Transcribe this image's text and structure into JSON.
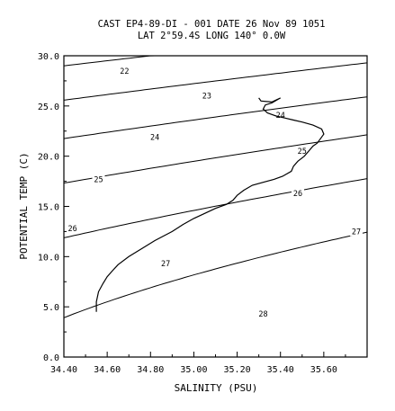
{
  "chart_data": {
    "type": "line",
    "title_line1": "CAST EP4-89-DI - 001  DATE 26 Nov 89 1051",
    "title_line2": "LAT 2°59.4S  LONG 140° 0.0W",
    "xlabel": "SALINITY (PSU)",
    "ylabel": "POTENTIAL TEMP (C)",
    "xlim": [
      34.4,
      35.8
    ],
    "ylim": [
      0,
      30
    ],
    "xticks": [
      34.4,
      34.6,
      34.8,
      35.0,
      35.2,
      35.4,
      35.6
    ],
    "xtick_labels": [
      "34.40",
      "34.60",
      "34.80",
      "35.00",
      "35.20",
      "35.40",
      "35.60"
    ],
    "yticks": [
      0,
      5,
      10,
      15,
      20,
      25,
      30
    ],
    "ytick_labels": [
      "0.0",
      "5.0",
      "10.0",
      "15.0",
      "20.0",
      "25.0",
      "30.0"
    ],
    "grid": false,
    "series": [
      {
        "type": "line",
        "x": [
          34.55,
          34.55,
          34.56,
          34.58,
          34.6,
          34.62,
          34.65,
          34.7,
          34.76,
          34.82,
          34.9,
          34.95,
          35.0,
          35.06,
          35.1,
          35.15,
          35.18,
          35.2,
          35.23,
          35.27,
          35.32,
          35.37,
          35.41,
          35.45,
          35.46,
          35.48,
          35.51,
          35.53,
          35.55,
          35.57,
          35.58,
          35.6,
          35.59,
          35.55,
          35.5,
          35.46,
          35.42,
          35.38,
          35.34,
          35.32,
          35.33,
          35.36,
          35.4,
          35.36,
          35.31,
          35.3
        ],
        "y": [
          4.5,
          5.5,
          6.5,
          7.3,
          8.0,
          8.5,
          9.2,
          10.0,
          10.8,
          11.6,
          12.5,
          13.2,
          13.8,
          14.4,
          14.8,
          15.2,
          15.6,
          16.1,
          16.6,
          17.1,
          17.4,
          17.7,
          18.0,
          18.5,
          19.0,
          19.5,
          20.0,
          20.5,
          21.0,
          21.3,
          21.6,
          22.2,
          22.7,
          23.1,
          23.4,
          23.6,
          23.8,
          24.0,
          24.3,
          24.7,
          25.1,
          25.3,
          25.8,
          25.4,
          25.5,
          25.8
        ]
      }
    ],
    "contours": [
      {
        "label": "22",
        "sigma": 22,
        "label_at": [
          34.68,
          28.5
        ]
      },
      {
        "label": "23",
        "sigma": 23,
        "label_at": [
          35.06,
          26.0
        ]
      },
      {
        "label": "24",
        "sigma": 24,
        "label_at": [
          35.4,
          24.1
        ]
      },
      {
        "label": "24",
        "sigma": 24,
        "label_at": [
          34.82,
          21.9
        ]
      },
      {
        "label": "25",
        "sigma": 25,
        "label_at": [
          35.5,
          20.5
        ]
      },
      {
        "label": "25",
        "sigma": 25,
        "label_at": [
          34.56,
          17.7
        ]
      },
      {
        "label": "26",
        "sigma": 26,
        "label_at": [
          35.48,
          16.3
        ]
      },
      {
        "label": "26",
        "sigma": 26,
        "label_at": [
          34.44,
          12.8
        ]
      },
      {
        "label": "27",
        "sigma": 27,
        "label_at": [
          35.75,
          12.5
        ]
      },
      {
        "label": "27",
        "sigma": 27,
        "label_at": [
          34.87,
          9.3
        ]
      },
      {
        "label": "28",
        "sigma": 28,
        "label_at": [
          35.32,
          4.3
        ]
      }
    ]
  }
}
